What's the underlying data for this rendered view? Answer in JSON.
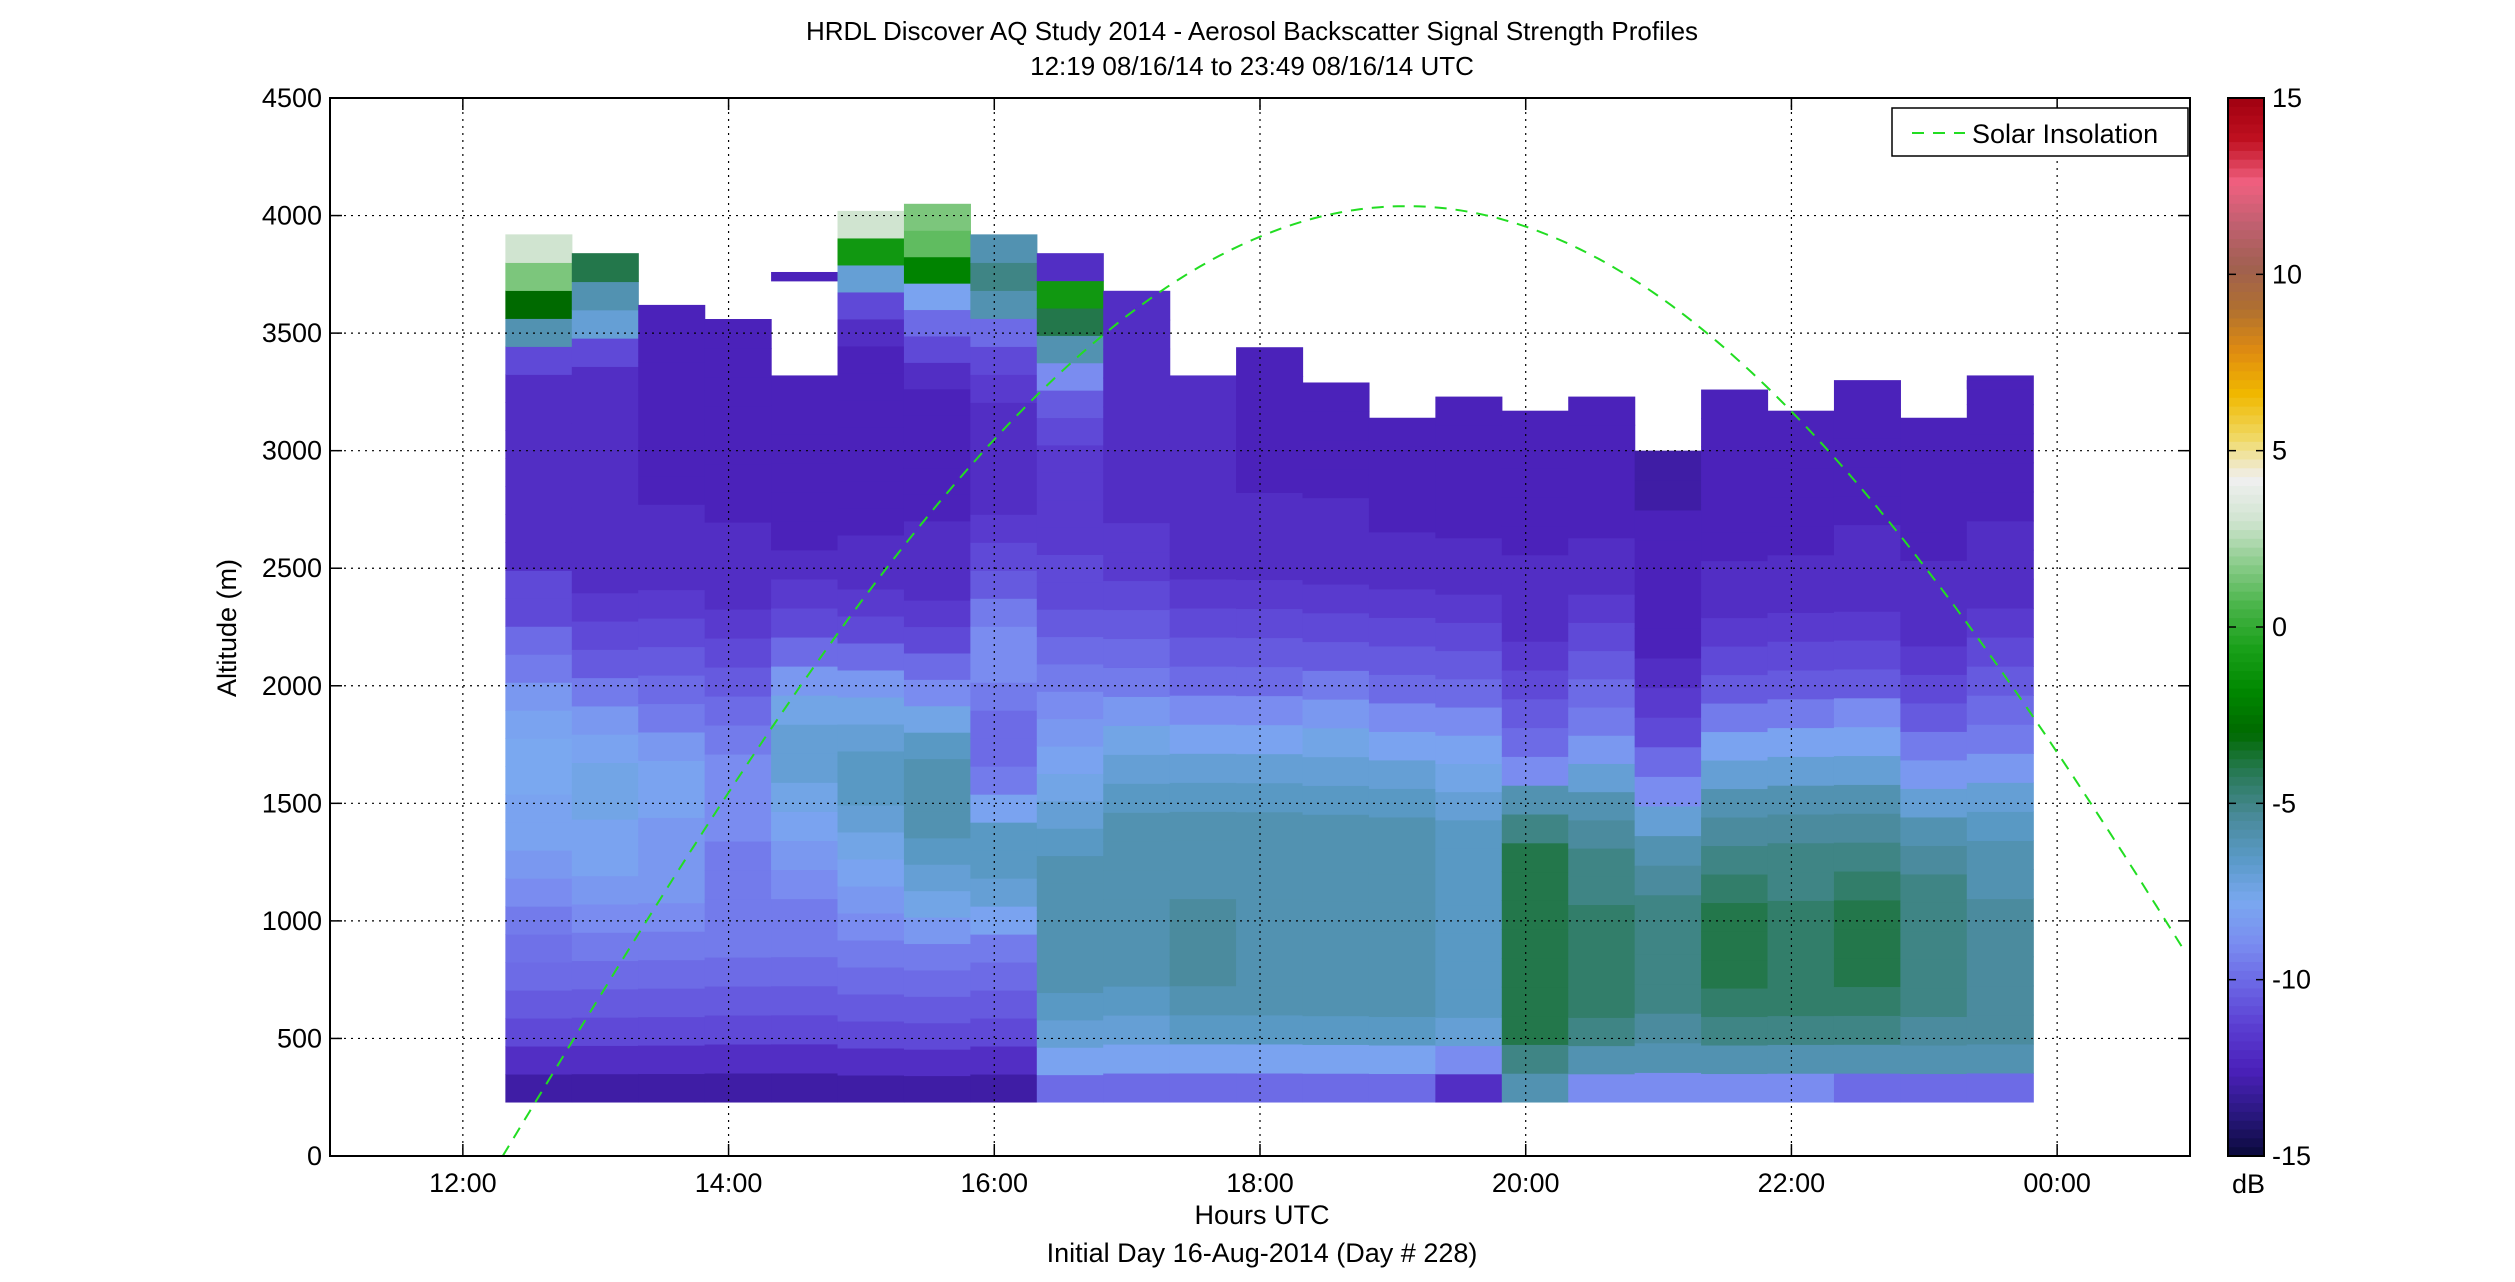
{
  "chart_data": {
    "type": "heatmap",
    "title": "HRDL Discover AQ Study 2014 - Aerosol Backscatter Signal Strength Profiles",
    "subtitle": "12:19 08/16/14 to 23:49 08/16/14  UTC",
    "xlabel": "Hours UTC",
    "xlabel2": "Initial Day 16-Aug-2014 (Day # 228)",
    "ylabel": "Altitude (m)",
    "x_tick_labels": [
      "12:00",
      "14:00",
      "16:00",
      "18:00",
      "20:00",
      "22:00",
      "00:00"
    ],
    "x_tick_hours": [
      12,
      14,
      16,
      18,
      20,
      22,
      24
    ],
    "xlim_hours": [
      11,
      25
    ],
    "y_ticks": [
      0,
      500,
      1000,
      1500,
      2000,
      2500,
      3000,
      3500,
      4000,
      4500
    ],
    "ylim": [
      0,
      4500
    ],
    "grid": true,
    "colorbar": {
      "ticks": [
        15,
        10,
        5,
        0,
        -5,
        -10,
        -15
      ],
      "range": [
        -15,
        15
      ],
      "unit": "dB"
    },
    "legend": {
      "position": "top-right",
      "entries": [
        "Solar Insolation"
      ]
    },
    "solar_insolation": {
      "color": "#22dd22",
      "style": "dashed",
      "peak_hour": 19.1,
      "peak_altitude": 4040
    },
    "profile_bin_base_m": 230,
    "profiles": [
      {
        "start": 12.32,
        "end": 12.82,
        "top": 3920,
        "values": [
          -13,
          -12,
          -11,
          -10.5,
          -10,
          -9.8,
          -9.5,
          -9,
          -8.5,
          -8,
          -8,
          -7.8,
          -7.8,
          -8,
          -8.5,
          -9.5,
          -10,
          -11,
          -11,
          -12,
          -12,
          -12,
          -12,
          -12,
          -12,
          -12,
          -11,
          -6,
          -3,
          1.5,
          3
        ]
      },
      {
        "start": 12.82,
        "end": 13.32,
        "top": 3840,
        "values": [
          -13,
          -12,
          -11,
          -10.5,
          -10,
          -9.5,
          -9,
          -8.5,
          -8,
          -8,
          -7.5,
          -7.5,
          -8,
          -8.5,
          -9.5,
          -10.5,
          -11,
          -11.5,
          -12,
          -12,
          -12,
          -12,
          -12,
          -12,
          -12,
          -12,
          -11,
          -7,
          -6,
          -4
        ]
      },
      {
        "start": 13.32,
        "end": 13.82,
        "top": 3620,
        "values": [
          -13,
          -12,
          -11,
          -10.5,
          -10,
          -9.5,
          -9,
          -8.5,
          -8.5,
          -8.5,
          -8,
          -8,
          -8.5,
          -9.5,
          -10,
          -10.5,
          -11,
          -11.5,
          -12,
          -12,
          -12,
          -12.5,
          -12.5,
          -12.5,
          -12.5,
          -12.5,
          -12.5,
          -12.5
        ]
      },
      {
        "start": 13.82,
        "end": 14.32,
        "top": 3560,
        "values": [
          -13,
          -12,
          -11,
          -10.5,
          -10,
          -9.5,
          -9.5,
          -9.5,
          -9.5,
          -9,
          -9,
          -9,
          -9.5,
          -10,
          -10.5,
          -11,
          -11.5,
          -12,
          -12,
          -12,
          -12.5,
          -12.5,
          -12.5,
          -12.5,
          -12.5,
          -12.5,
          -12.5
        ]
      },
      {
        "start": 14.32,
        "end": 14.82,
        "top": 3320,
        "values": [
          -13,
          -12,
          -11,
          -10.5,
          -10,
          -9.5,
          -9.5,
          -9,
          -8.5,
          -8,
          -7.5,
          -7,
          -7,
          -7.5,
          -8.5,
          -10,
          -11,
          -11.5,
          -12,
          -12.5,
          -12.5,
          -12.5,
          -12.5,
          -12.5,
          -12.5
        ]
      },
      {
        "start": 14.82,
        "end": 15.32,
        "top": 4020,
        "values": [
          -13,
          -12,
          -11,
          -10.5,
          -10,
          -9.5,
          -9,
          -8.5,
          -8,
          -7.5,
          -7,
          -6.5,
          -6.5,
          -7,
          -7.5,
          -8.5,
          -10,
          -11,
          -11.5,
          -12,
          -12,
          -12.5,
          -12.5,
          -12.5,
          -12.5,
          -12.5,
          -12.5,
          -12.5,
          -12,
          -11,
          -7,
          -1,
          3
        ]
      },
      {
        "start": 15.32,
        "end": 15.82,
        "top": 4050,
        "values": [
          -13,
          -12,
          -11,
          -10.5,
          -10,
          -9.5,
          -8.5,
          -7.5,
          -7,
          -6.5,
          -6,
          -6,
          -6,
          -6.5,
          -7.5,
          -9,
          -10,
          -11,
          -11.5,
          -12,
          -12,
          -12,
          -12.5,
          -12.5,
          -12.5,
          -12.5,
          -12.5,
          -12,
          -11,
          -10,
          -8,
          -2,
          1,
          1.5
        ]
      },
      {
        "start": 15.82,
        "end": 16.32,
        "top": 3920,
        "values": [
          -13,
          -12,
          -11,
          -10.5,
          -10,
          -9.5,
          -8,
          -7,
          -6.5,
          -6.5,
          -8,
          -9.5,
          -10,
          -10,
          -9.5,
          -9,
          -9,
          -9.5,
          -10.5,
          -11,
          -11.5,
          -12,
          -12,
          -12,
          -12,
          -11.5,
          -11,
          -10,
          -6,
          -5,
          -6
        ]
      },
      {
        "start": 16.32,
        "end": 16.82,
        "top": 3840,
        "values": [
          -10,
          -8,
          -7,
          -6.5,
          -6,
          -6,
          -6,
          -6,
          -6,
          -6.5,
          -7,
          -7.5,
          -8,
          -8.5,
          -9,
          -9.5,
          -10,
          -10.5,
          -11,
          -11,
          -11.5,
          -11.5,
          -11.5,
          -11.5,
          -11,
          -10.5,
          -9,
          -6,
          -4,
          -1,
          -12
        ]
      },
      {
        "start": 16.82,
        "end": 17.32,
        "top": 3680,
        "values": [
          -10,
          -8,
          -7,
          -6.5,
          -6,
          -6,
          -6,
          -6,
          -6,
          -6,
          -6.5,
          -7,
          -7.5,
          -8.5,
          -9.5,
          -10,
          -10.5,
          -11,
          -11.5,
          -11.5,
          -12,
          -12,
          -12,
          -12,
          -12,
          -12,
          -12,
          -12
        ]
      },
      {
        "start": 17.32,
        "end": 17.82,
        "top": 3320,
        "values": [
          -10,
          -8,
          -6.5,
          -6,
          -5.5,
          -5.5,
          -5.5,
          -6,
          -6,
          -6,
          -6.5,
          -7,
          -8,
          -9,
          -10,
          -10.5,
          -11,
          -11.5,
          -12,
          -12,
          -12,
          -12,
          -12,
          -12,
          -12
        ]
      },
      {
        "start": 17.82,
        "end": 18.32,
        "top": 3440,
        "values": [
          -10,
          -8,
          -6.5,
          -6,
          -6,
          -6,
          -6,
          -6,
          -6,
          -6,
          -6.5,
          -7,
          -8,
          -9,
          -10,
          -10.5,
          -11,
          -11.5,
          -12,
          -12,
          -12,
          -12.5,
          -12.5,
          -12.5,
          -12.5,
          -12.5
        ]
      },
      {
        "start": 18.32,
        "end": 18.82,
        "top": 3290,
        "values": [
          -10,
          -8,
          -6.5,
          -6,
          -6,
          -6,
          -6,
          -6,
          -6,
          -6,
          -6.5,
          -7,
          -7.5,
          -8.5,
          -9.5,
          -10.5,
          -11,
          -11.5,
          -12,
          -12,
          -12,
          -12.5,
          -12.5,
          -12.5,
          -12.5
        ]
      },
      {
        "start": 18.82,
        "end": 19.32,
        "top": 3140,
        "values": [
          -10,
          -8,
          -6.5,
          -6,
          -6,
          -6,
          -6,
          -6,
          -6,
          -6,
          -6.5,
          -7,
          -8,
          -9,
          -10,
          -10.5,
          -11,
          -11.5,
          -12,
          -12,
          -12.5,
          -12.5,
          -12.5,
          -12.5
        ]
      },
      {
        "start": 19.32,
        "end": 19.82,
        "top": 3230,
        "values": [
          -12,
          -9,
          -7,
          -6.5,
          -6.5,
          -6.5,
          -6.5,
          -6.5,
          -6.5,
          -6.5,
          -7,
          -7.5,
          -8,
          -9,
          -10,
          -10.5,
          -11,
          -11.5,
          -12,
          -12,
          -12.5,
          -12.5,
          -12.5,
          -12.5,
          -12.5
        ]
      },
      {
        "start": 19.82,
        "end": 20.32,
        "top": 3170,
        "values": [
          -6,
          -5,
          -4,
          -4,
          -4,
          -4,
          -4,
          -4,
          -4,
          -5,
          -6,
          -9,
          -10,
          -10.5,
          -11,
          -11.5,
          -12,
          -12,
          -12,
          -12.5,
          -12.5,
          -12.5,
          -12.5,
          -12.5
        ]
      },
      {
        "start": 20.32,
        "end": 20.82,
        "top": 3230,
        "values": [
          -9,
          -6,
          -5,
          -4.5,
          -4.5,
          -4.5,
          -4.5,
          -5,
          -5,
          -5.5,
          -6,
          -7,
          -8.5,
          -9.5,
          -10,
          -10.5,
          -11,
          -11.5,
          -12,
          -12,
          -12.5,
          -12.5,
          -12.5,
          -12.5,
          -12.5
        ]
      },
      {
        "start": 20.82,
        "end": 21.32,
        "top": 3000,
        "values": [
          -9,
          -6,
          -5.5,
          -5,
          -5,
          -5,
          -5,
          -5.5,
          -6,
          -7,
          -9,
          -10,
          -11,
          -11.5,
          -12,
          -12.5,
          -12.5,
          -12.5,
          -12.5,
          -12.5,
          -13,
          -13
        ]
      },
      {
        "start": 21.32,
        "end": 21.82,
        "top": 3260,
        "values": [
          -9,
          -6,
          -5,
          -4.5,
          -4,
          -4,
          -4,
          -4.5,
          -5,
          -5.5,
          -6,
          -7,
          -8,
          -9.5,
          -10.5,
          -11,
          -11.5,
          -12,
          -12,
          -12.5,
          -12.5,
          -12.5,
          -12.5,
          -12.5,
          -12.5
        ]
      },
      {
        "start": 21.82,
        "end": 22.32,
        "top": 3170,
        "values": [
          -9,
          -6,
          -5,
          -4.5,
          -4.5,
          -4.5,
          -4.5,
          -5,
          -5,
          -5.5,
          -6,
          -7,
          -8,
          -9.5,
          -10.5,
          -11,
          -11.5,
          -12,
          -12,
          -12.5,
          -12.5,
          -12.5,
          -12.5,
          -12.5
        ]
      },
      {
        "start": 22.32,
        "end": 22.82,
        "top": 3300,
        "values": [
          -10,
          -6,
          -5,
          -4.5,
          -4,
          -4,
          -4,
          -4.5,
          -5,
          -5.5,
          -6,
          -7,
          -8,
          -9,
          -10.5,
          -11,
          -11.5,
          -12,
          -12,
          -12,
          -12.5,
          -12.5,
          -12.5,
          -12.5,
          -12.5
        ]
      },
      {
        "start": 22.82,
        "end": 23.32,
        "top": 3140,
        "values": [
          -10,
          -6,
          -5.5,
          -5,
          -5,
          -5,
          -5,
          -5,
          -5.5,
          -6,
          -7,
          -8.5,
          -9.5,
          -10.5,
          -11,
          -11.5,
          -12,
          -12,
          -12,
          -12.5,
          -12.5,
          -12.5,
          -12.5,
          -12.5
        ]
      },
      {
        "start": 23.32,
        "end": 23.82,
        "top": 3320,
        "values": [
          -10,
          -6,
          -5.5,
          -5.5,
          -5.5,
          -5.5,
          -5.5,
          -6,
          -6,
          -6.5,
          -7,
          -8.5,
          -9.5,
          -10,
          -10.5,
          -11,
          -11.5,
          -12,
          -12,
          -12,
          -12.5,
          -12.5,
          -12.5,
          -12.5,
          -12.5
        ]
      }
    ],
    "isolated_segments": [
      {
        "start": 14.32,
        "end": 14.82,
        "altitude": 3740,
        "value": -12.5
      },
      {
        "start": 23.32,
        "end": 23.82,
        "altitude": 3280,
        "value": -12.5
      }
    ],
    "colors": {
      "colormap": [
        "#0a0a3a",
        "#2a1880",
        "#4a20b8",
        "#5a3cd0",
        "#6a64e4",
        "#7a8cf0",
        "#7aa8f0",
        "#5a9ac8",
        "#4a8a9a",
        "#2a7a5a",
        "#006a00",
        "#008800",
        "#1aa01a",
        "#4ab44a",
        "#8ccc8c",
        "#d0e4d0",
        "#f0f0f0",
        "#f0d860",
        "#f0b800",
        "#e08c10",
        "#b07030",
        "#a06050",
        "#c06070",
        "#f06080",
        "#c01020",
        "#a00010"
      ]
    }
  }
}
